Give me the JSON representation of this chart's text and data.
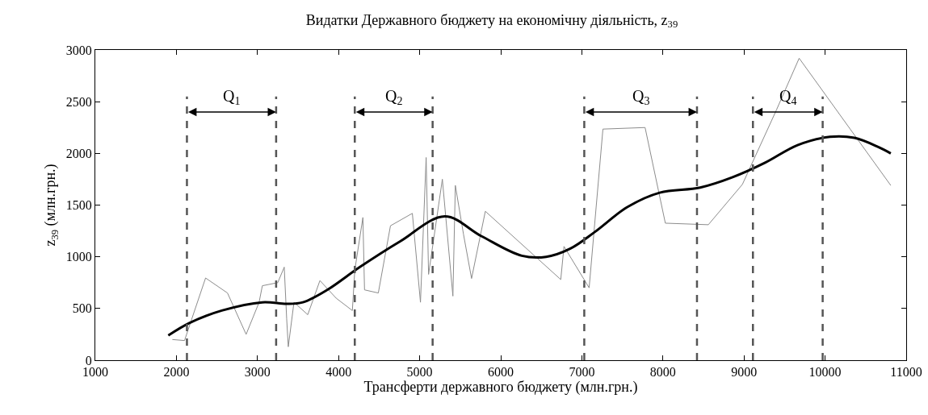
{
  "chart_data": {
    "type": "line",
    "title": "Видатки Державного бюджету на економічну діяльність, z$_{39}$",
    "xlabel": "Трансферти державного бюджету (млн.грн.)",
    "ylabel": "z$_{39}$ (млн.грн.)",
    "xlim": [
      1000,
      11000
    ],
    "xticks": [
      1000,
      2000,
      3000,
      4000,
      5000,
      6000,
      7000,
      8000,
      9000,
      10000,
      11000
    ],
    "ylim": [
      0,
      3000
    ],
    "yticks": [
      0,
      500,
      1000,
      1500,
      2000,
      2500,
      3000
    ],
    "grid": false,
    "marker": "none",
    "line_style": "solid",
    "series": [
      {
        "color": "#8c8c8c",
        "x": [
          1950,
          2100,
          2360,
          2630,
          2860,
          3020,
          3060,
          3250,
          3330,
          3360,
          3380,
          3450,
          3620,
          3770,
          3970,
          4170,
          4200,
          4300,
          4320,
          4490,
          4640,
          4910,
          5010,
          5080,
          5110,
          5280,
          5410,
          5440,
          5540,
          5640,
          5810,
          6740,
          6780,
          7090,
          7260,
          7780,
          8030,
          8560,
          8980,
          9400,
          9680,
          10810
        ],
        "values": [
          200,
          190,
          795,
          650,
          250,
          560,
          720,
          750,
          900,
          400,
          130,
          560,
          440,
          770,
          600,
          480,
          870,
          1380,
          680,
          650,
          1300,
          1420,
          560,
          1960,
          830,
          1750,
          620,
          1690,
          1220,
          790,
          1440,
          780,
          1100,
          700,
          2235,
          2250,
          1325,
          1310,
          1700,
          2420,
          2920,
          1690
        ]
      },
      {
        "color": "#000000",
        "x": [
          1900,
          2160,
          2560,
          3060,
          3360,
          3560,
          3860,
          4260,
          4760,
          5310,
          5760,
          6260,
          6560,
          6860,
          7160,
          7560,
          7960,
          8460,
          8860,
          9260,
          9660,
          10060,
          10360,
          10660,
          10810
        ],
        "values": [
          240,
          360,
          480,
          560,
          545,
          560,
          680,
          900,
          1150,
          1390,
          1200,
          1010,
          1000,
          1080,
          1240,
          1480,
          1620,
          1670,
          1770,
          1910,
          2080,
          2160,
          2150,
          2060,
          2000
        ]
      }
    ],
    "ref_lines": [
      {
        "axis": "x",
        "value": 2130,
        "color": "#555555",
        "line_style": "dashed"
      },
      {
        "axis": "x",
        "value": 3230,
        "color": "#555555",
        "line_style": "dashed"
      },
      {
        "axis": "x",
        "value": 4200,
        "color": "#555555",
        "line_style": "dashed"
      },
      {
        "axis": "x",
        "value": 5160,
        "color": "#555555",
        "line_style": "dashed"
      },
      {
        "axis": "x",
        "value": 7030,
        "color": "#555555",
        "line_style": "dashed"
      },
      {
        "axis": "x",
        "value": 8420,
        "color": "#555555",
        "line_style": "dashed"
      },
      {
        "axis": "x",
        "value": 9110,
        "color": "#555555",
        "line_style": "dashed"
      },
      {
        "axis": "x",
        "value": 9970,
        "color": "#555555",
        "line_style": "dashed"
      }
    ],
    "annotations": [
      "Q$_{1}$",
      "Q$_{2}$",
      "Q$_{3}$",
      "Q$_{4}$"
    ]
  }
}
